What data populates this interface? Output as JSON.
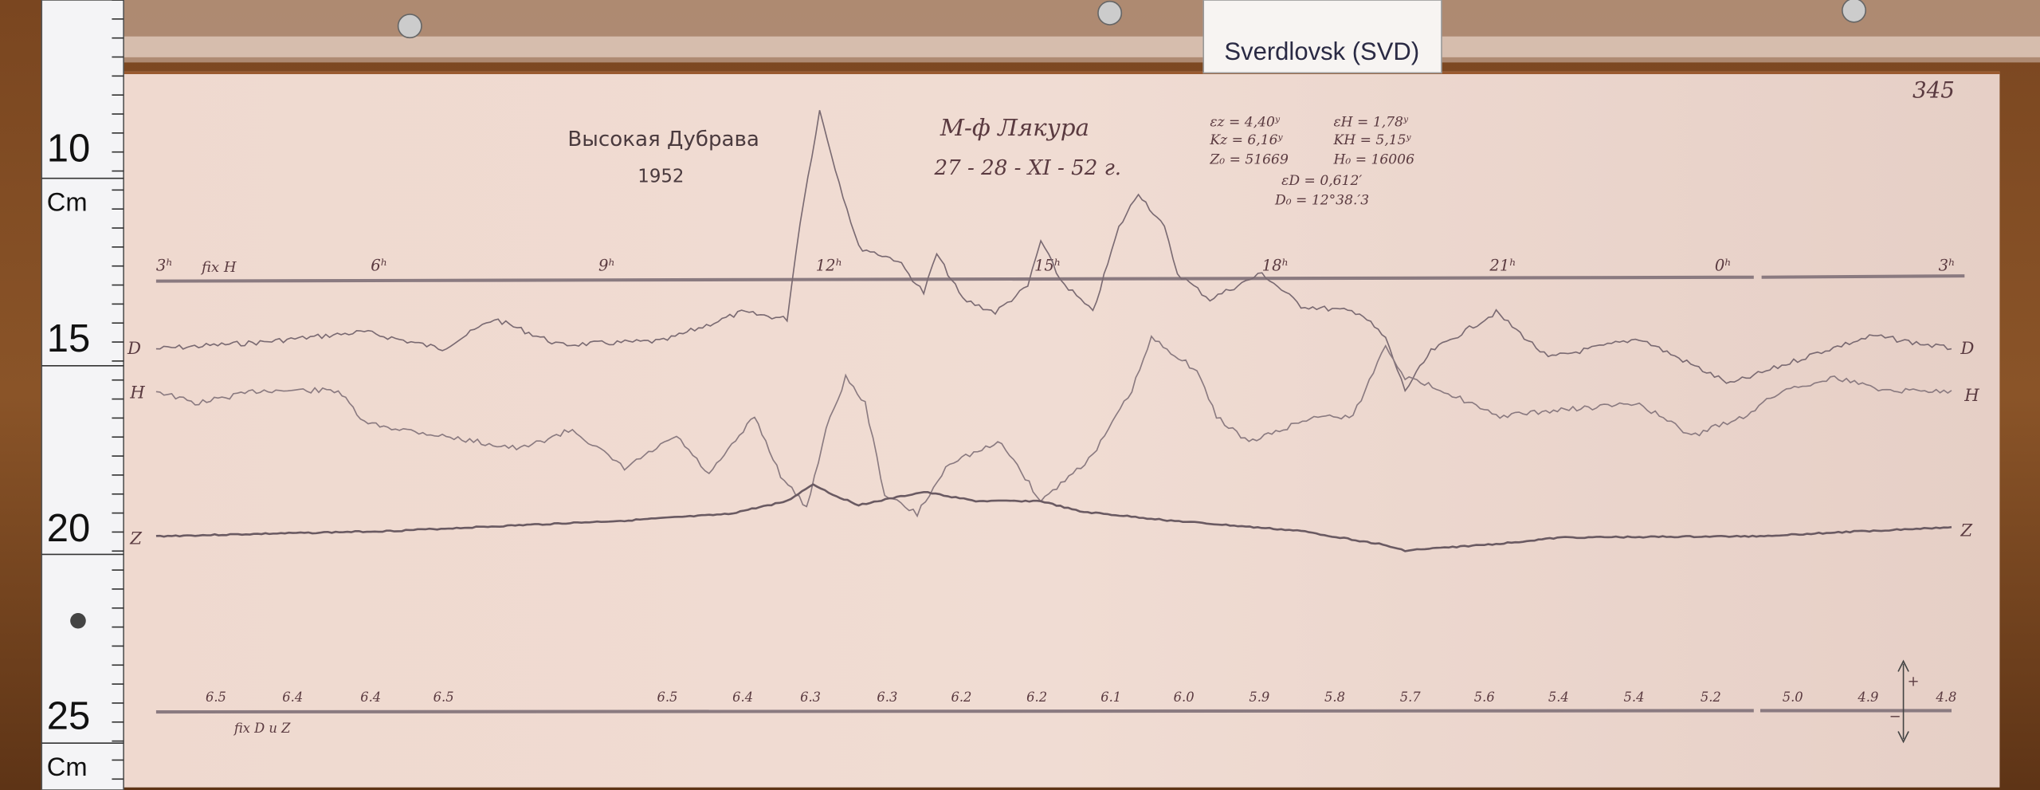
{
  "station_label": "Sverdlovsk (SVD)",
  "page_number": "345",
  "ruler": {
    "marks": [
      "10",
      "15",
      "20",
      "25"
    ],
    "unit": "Cm"
  },
  "header": {
    "station_name": "Высокая Дубрава",
    "year": "1952",
    "observer": "М-ф Лякура",
    "date": "27 - 28 - XI - 52 г."
  },
  "constants": {
    "ez": "εz = 4,40ʸ",
    "kz": "Kz = 6,16ʸ",
    "z0": "Z₀ = 51669",
    "eh": "εH = 1,78ʸ",
    "kh": "KH = 5,15ʸ",
    "h0": "H₀ = 16006",
    "ed": "εD = 0,612′",
    "d0": "D₀ = 12°38.′3"
  },
  "time_axis": {
    "fix_label": "fix H",
    "hours": [
      "3ʰ",
      "6ʰ",
      "9ʰ",
      "12ʰ",
      "15ʰ",
      "18ʰ",
      "21ʰ",
      "0ʰ",
      "3ʰ"
    ]
  },
  "curves": {
    "d": "D",
    "h": "H",
    "z": "Z"
  },
  "bottom_scale": {
    "fix_label": "fix D и Z",
    "values": [
      "6.5",
      "6.4",
      "6.4",
      "6.5",
      "6.5",
      "6.4",
      "6.3",
      "6.3",
      "6.2",
      "6.2",
      "6.1",
      "6.0",
      "5.9",
      "5.8",
      "5.7",
      "5.6",
      "5.4",
      "5.4",
      "5.2",
      "5.0",
      "4.9",
      "4.8"
    ],
    "plus": "+",
    "minus": "−"
  },
  "colors": {
    "wood": "#6e3f1c",
    "paper": "#ecd6cc",
    "trace": "#7a6a72",
    "baseline": "#8a7a80"
  }
}
